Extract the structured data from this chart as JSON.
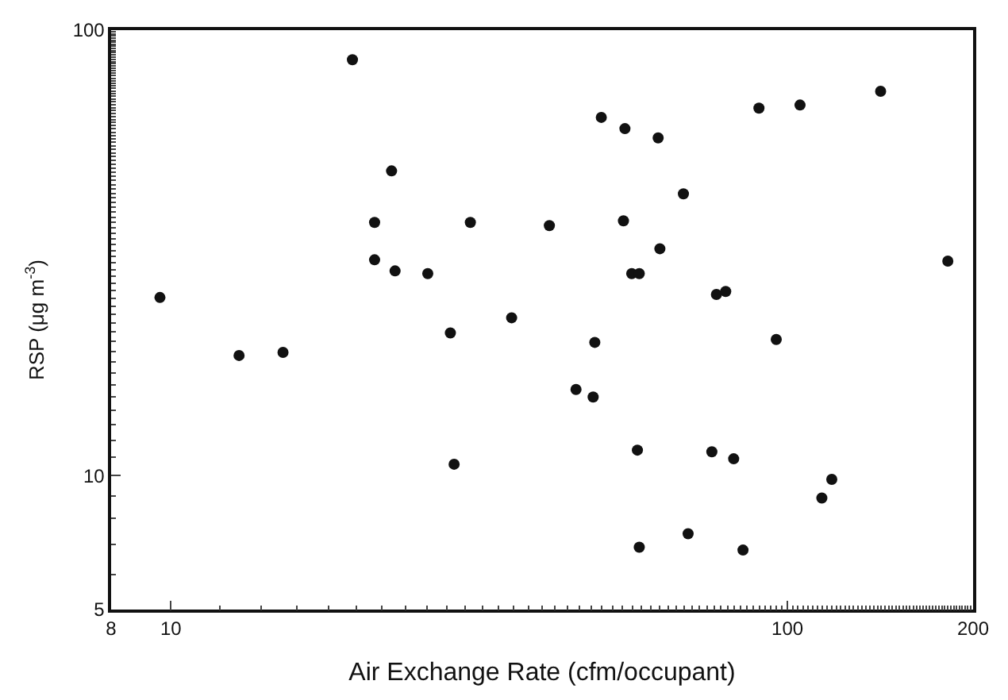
{
  "chart_data": {
    "type": "scatter",
    "xlabel": "Air Exchange Rate (cfm/occupant)",
    "ylabel": "RSP (μg m$^{-3}$)",
    "log": "xy",
    "marker": "circle",
    "xlim": [
      8,
      200
    ],
    "xticks": [
      8,
      10,
      100,
      200
    ],
    "ylim": [
      5,
      100
    ],
    "yticks": [
      5,
      10,
      100
    ],
    "series": [
      {
        "color": "#111111",
        "x": [
          9.6,
          12.9,
          15.2,
          19.7,
          22.8,
          21.4,
          21.4,
          23.1,
          26.1,
          28.4,
          30.6,
          35.7,
          28.8,
          41.1,
          49.9,
          54.5,
          61.7,
          54.2,
          67.8,
          62.1,
          55.9,
          57.5,
          48.7,
          45.4,
          48.4,
          57.1,
          57.5,
          69.0,
          76.7,
          79.4,
          75.4,
          81.8,
          84.7,
          89.9,
          104.8,
          95.9,
          141.6,
          182,
          113.7,
          118
        ],
        "values": [
          25.1,
          18.6,
          18.9,
          85.8,
          48.3,
          37.0,
          30.5,
          28.8,
          28.4,
          20.9,
          37.0,
          22.6,
          10.6,
          36.4,
          63.7,
          60.1,
          57.3,
          37.3,
          42.9,
          32.3,
          28.4,
          28.4,
          19.9,
          15.6,
          15.0,
          11.4,
          6.9,
          7.4,
          25.5,
          25.9,
          11.3,
          10.9,
          6.8,
          66.8,
          67.9,
          20.2,
          72.9,
          30.3,
          8.9,
          9.8
        ]
      }
    ]
  }
}
